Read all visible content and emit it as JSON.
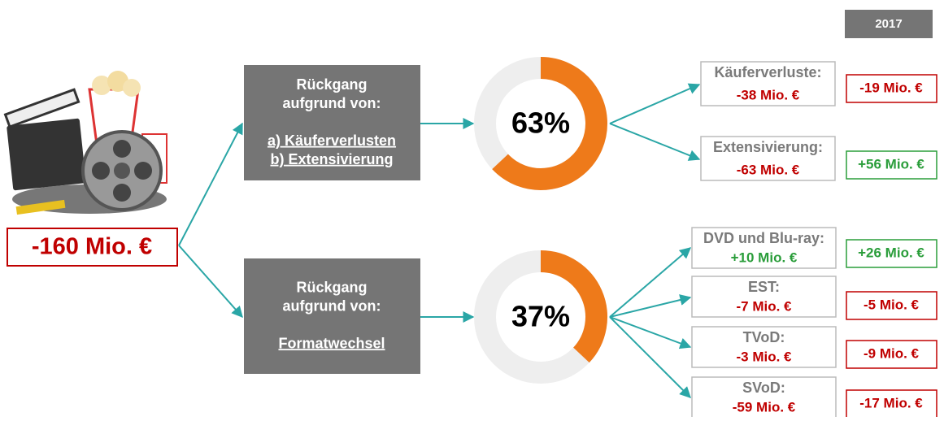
{
  "year": "2017",
  "total": "-160 Mio. €",
  "branches": [
    {
      "heading": [
        "Rückgang",
        "aufgrund von:"
      ],
      "reasons": [
        "a) Käuferverlusten",
        "b) Extensivierung"
      ],
      "share": {
        "value": 63,
        "label": "63%"
      },
      "items": [
        {
          "name": "Käuferverluste:",
          "value": "-38 Mio. €",
          "change": "-19 Mio. €"
        },
        {
          "name": "Extensivierung:",
          "value": "-63 Mio. €",
          "change": "+56 Mio. €"
        }
      ]
    },
    {
      "heading": [
        "Rückgang",
        "aufgrund von:"
      ],
      "reasons": [
        "Formatwechsel"
      ],
      "share": {
        "value": 37,
        "label": "37%"
      },
      "items": [
        {
          "name": "DVD und Blu-ray:",
          "value": "+10 Mio. €",
          "change": "+26 Mio. €"
        },
        {
          "name": "EST:",
          "value": "-7 Mio. €",
          "change": "-5 Mio. €"
        },
        {
          "name": "TVoD:",
          "value": "-3 Mio. €",
          "change": "-9 Mio. €"
        },
        {
          "name": "SVoD:",
          "value": "-59 Mio. €",
          "change": "-17 Mio. €"
        }
      ]
    }
  ]
}
